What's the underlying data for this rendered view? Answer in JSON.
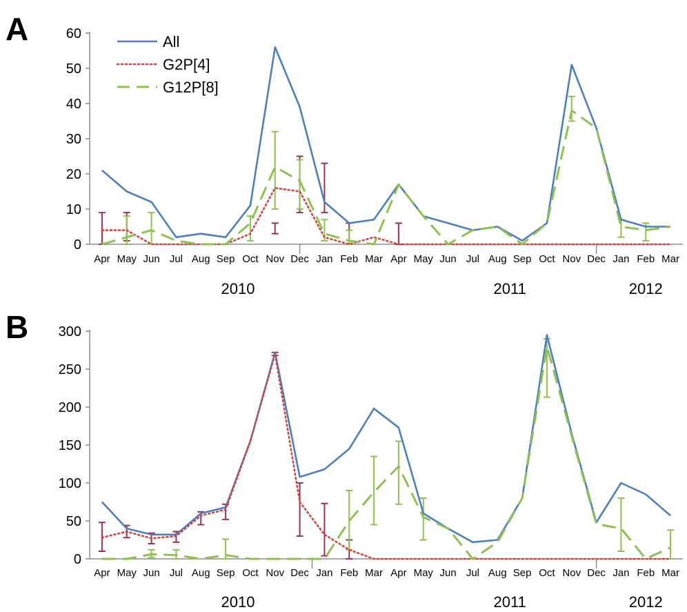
{
  "styles": {
    "all_color": "#4a7fc4",
    "g2p4_color": "#d9413c",
    "g2p4_err_color": "#a03050",
    "g12p8_color": "#8dc24e",
    "axis_color": "#8c8c8c"
  },
  "legend": [
    {
      "key": "all",
      "label": "All",
      "style": "solid"
    },
    {
      "key": "g2p4",
      "label": "G2P[4]",
      "style": "dotted"
    },
    {
      "key": "g12p8",
      "label": "G12P[8]",
      "style": "dashed"
    }
  ],
  "chart_data": [
    {
      "panel": "A",
      "type": "line",
      "ylim": [
        0,
        60
      ],
      "yticks": [
        "0",
        "10",
        "20",
        "30",
        "40",
        "50",
        "60"
      ],
      "categories": [
        "Apr",
        "May",
        "Jun",
        "Jul",
        "Aug",
        "Sep",
        "Oct",
        "Nov",
        "Dec",
        "Jan",
        "Feb",
        "Mar",
        "Apr",
        "May",
        "Jun",
        "Jul",
        "Aug",
        "Sep",
        "Oct",
        "Nov",
        "Dec",
        "Jan",
        "Feb",
        "Mar"
      ],
      "years": [
        {
          "label": "2010",
          "at": 5.5
        },
        {
          "label": "2011",
          "at": 16.5
        },
        {
          "label": "2012",
          "at": 22
        }
      ],
      "year_dividers": [
        8.5,
        20.5
      ],
      "legend_position": "top-left",
      "series": [
        {
          "key": "all",
          "name": "All",
          "values": [
            21,
            15,
            12,
            2,
            3,
            2,
            11,
            56,
            39,
            12,
            6,
            7,
            17,
            8,
            6,
            4,
            5,
            1,
            6,
            51,
            33,
            7,
            5,
            5
          ]
        },
        {
          "key": "g2p4",
          "name": "G2P[4]",
          "values": [
            4,
            4,
            0,
            0,
            0,
            0,
            3,
            16,
            15,
            2,
            0,
            2,
            0,
            0,
            0,
            0,
            0,
            0,
            0,
            0,
            0,
            0,
            0,
            0
          ],
          "errors": [
            [
              0,
              0,
              9
            ],
            [
              1,
              1,
              9
            ],
            [
              7,
              3,
              6
            ],
            [
              8,
              9,
              25
            ],
            [
              9,
              9,
              23
            ],
            [
              10,
              0,
              6
            ],
            [
              12,
              0,
              6
            ]
          ]
        },
        {
          "key": "g12p8",
          "name": "G12P[8]",
          "values": [
            0,
            2,
            4,
            1,
            0,
            0,
            6,
            22,
            18,
            3,
            1,
            0,
            17,
            8,
            0,
            4,
            5,
            0,
            6,
            38,
            33,
            5,
            4,
            5
          ],
          "errors": [
            [
              1,
              0,
              8
            ],
            [
              2,
              0,
              9
            ],
            [
              6,
              1,
              8
            ],
            [
              7,
              10,
              32
            ],
            [
              8,
              10,
              24
            ],
            [
              9,
              1,
              7
            ],
            [
              10,
              0,
              4
            ],
            [
              19,
              35,
              42
            ],
            [
              21,
              2,
              7
            ],
            [
              22,
              1,
              6
            ]
          ]
        }
      ]
    },
    {
      "panel": "B",
      "type": "line",
      "ylim": [
        0,
        300
      ],
      "yticks": [
        "0",
        "50",
        "100",
        "150",
        "200",
        "250",
        "300"
      ],
      "categories": [
        "Apr",
        "May",
        "Jun",
        "Jul",
        "Aug",
        "Sep",
        "Oct",
        "Nov",
        "Dec",
        "Jan",
        "Feb",
        "Mar",
        "Apr",
        "May",
        "Jun",
        "Jul",
        "Aug",
        "Sep",
        "Oct",
        "Nov",
        "Dec",
        "Jan",
        "Feb",
        "Mar"
      ],
      "years": [
        {
          "label": "2010",
          "at": 5.5
        },
        {
          "label": "2011",
          "at": 16.5
        },
        {
          "label": "2012",
          "at": 22
        }
      ],
      "year_dividers": [
        9.0,
        20.5
      ],
      "series": [
        {
          "key": "all",
          "name": "All",
          "values": [
            75,
            40,
            32,
            32,
            60,
            68,
            155,
            272,
            108,
            118,
            145,
            198,
            173,
            60,
            40,
            22,
            25,
            80,
            295,
            165,
            48,
            100,
            85,
            57
          ]
        },
        {
          "key": "g2p4",
          "name": "G2P[4]",
          "values": [
            28,
            36,
            27,
            30,
            57,
            65,
            155,
            270,
            75,
            32,
            12,
            0,
            0,
            0,
            0,
            0,
            0,
            0,
            0,
            0,
            0,
            0,
            0,
            0
          ],
          "errors": [
            [
              0,
              10,
              48
            ],
            [
              1,
              28,
              44
            ],
            [
              2,
              20,
              34
            ],
            [
              3,
              22,
              36
            ],
            [
              4,
              45,
              62
            ],
            [
              5,
              52,
              72
            ],
            [
              7,
              268,
              272
            ],
            [
              8,
              30,
              100
            ],
            [
              9,
              4,
              73
            ],
            [
              10,
              0,
              25
            ]
          ]
        },
        {
          "key": "g12p8",
          "name": "G12P[8]",
          "values": [
            0,
            0,
            6,
            5,
            0,
            5,
            0,
            0,
            0,
            0,
            50,
            88,
            122,
            55,
            40,
            0,
            22,
            80,
            280,
            162,
            46,
            40,
            0,
            15
          ],
          "errors": [
            [
              2,
              2,
              12
            ],
            [
              3,
              0,
              12
            ],
            [
              5,
              0,
              26
            ],
            [
              10,
              12,
              90
            ],
            [
              11,
              45,
              135
            ],
            [
              12,
              72,
              155
            ],
            [
              13,
              25,
              80
            ],
            [
              18,
              213,
              290
            ],
            [
              21,
              10,
              80
            ],
            [
              23,
              0,
              38
            ]
          ]
        }
      ]
    }
  ]
}
